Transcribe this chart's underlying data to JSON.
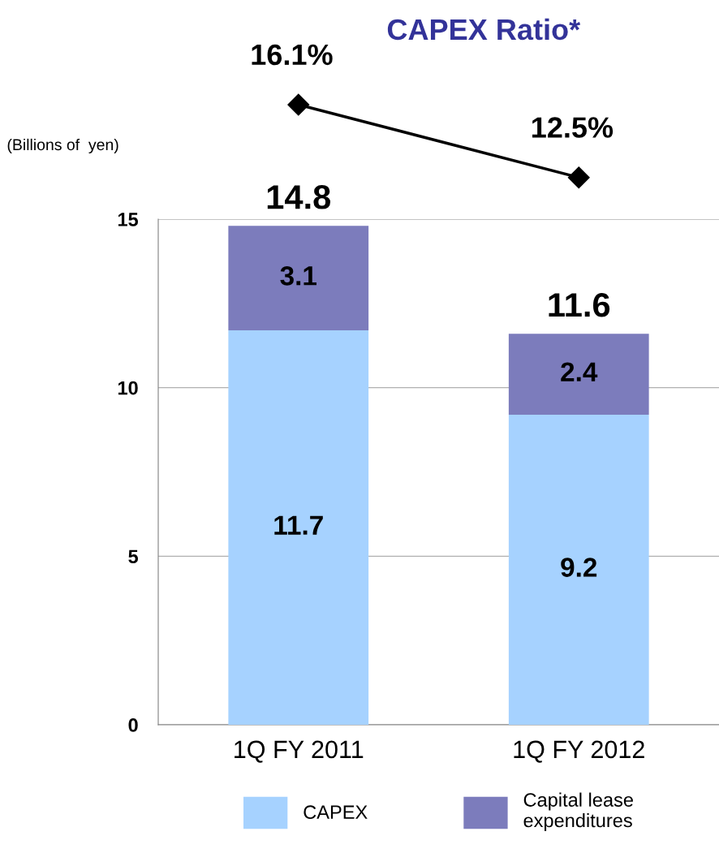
{
  "chart_data": [
    {
      "type": "line",
      "title": "CAPEX Ratio*",
      "categories": [
        null,
        null
      ],
      "marker": "diamond",
      "line_style": "solid",
      "data_labels": true,
      "series": [
        {
          "color": "#000000",
          "values": [
            16.1,
            12.5
          ],
          "value_labels": [
            "16.1%",
            "12.5%"
          ]
        }
      ]
    },
    {
      "type": "bar",
      "stacked": true,
      "ylabel": "(Billions of  yen)",
      "categories": [
        "1Q FY 2011",
        "1Q FY 2012"
      ],
      "ylim": [
        0,
        15
      ],
      "yticks": [
        0,
        5,
        10,
        15
      ],
      "grid": "y",
      "legend": "bottom",
      "data_labels": true,
      "totals": [
        "14.8",
        "11.6"
      ],
      "series": [
        {
          "name": "CAPEX",
          "color": "#a6d2ff",
          "values": [
            11.7,
            9.2
          ]
        },
        {
          "name": "Capital lease\nexpenditures",
          "color": "#7c7cbc",
          "values": [
            3.1,
            2.4
          ]
        }
      ]
    }
  ]
}
